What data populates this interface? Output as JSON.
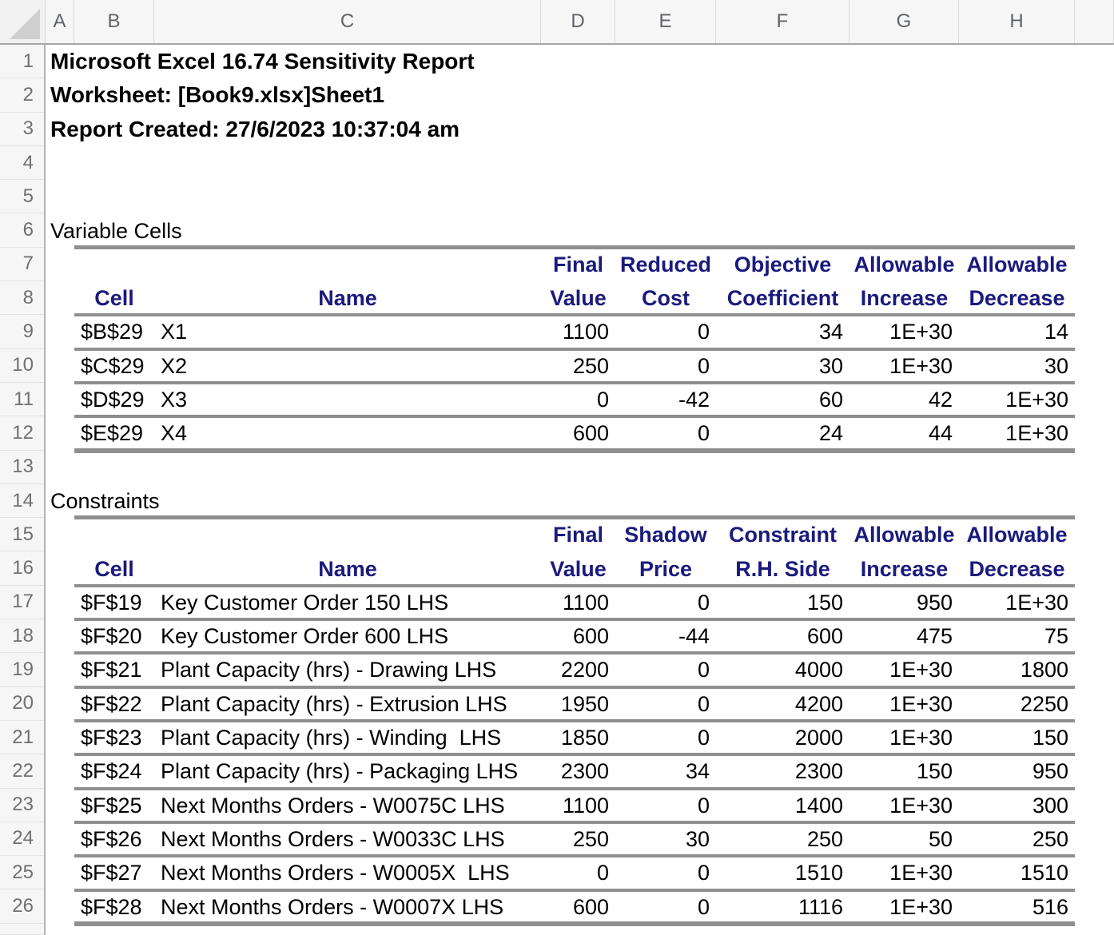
{
  "sheet": {
    "column_letters": [
      "A",
      "B",
      "C",
      "D",
      "E",
      "F",
      "G",
      "H"
    ],
    "row_numbers": [
      "1",
      "2",
      "3",
      "4",
      "5",
      "6",
      "7",
      "8",
      "9",
      "10",
      "11",
      "12",
      "13",
      "14",
      "15",
      "16",
      "17",
      "18",
      "19",
      "20",
      "21",
      "22",
      "23",
      "24",
      "25",
      "26"
    ],
    "titles": [
      "Microsoft Excel 16.74 Sensitivity Report",
      "Worksheet: [Book9.xlsx]Sheet1",
      "Report Created: 27/6/2023 10:37:04 am"
    ]
  },
  "colors": {
    "header_text": "#1a1a7e",
    "body_text": "#000000",
    "table_line": "#8f8f8f",
    "header_strip_bg": "#f6f6f6"
  },
  "variable_cells": {
    "section_label": "Variable Cells",
    "header_line1": [
      "Final",
      "Reduced",
      "Objective",
      "Allowable",
      "Allowable"
    ],
    "header_line2": [
      "Cell",
      "Name",
      "Value",
      "Cost",
      "Coefficient",
      "Increase",
      "Decrease"
    ],
    "rows": [
      {
        "cell": "$B$29",
        "name": "X1",
        "final_value": "1100",
        "reduced_cost": "0",
        "objective_coefficient": "34",
        "allowable_increase": "1E+30",
        "allowable_decrease": "14"
      },
      {
        "cell": "$C$29",
        "name": "X2",
        "final_value": "250",
        "reduced_cost": "0",
        "objective_coefficient": "30",
        "allowable_increase": "1E+30",
        "allowable_decrease": "30"
      },
      {
        "cell": "$D$29",
        "name": "X3",
        "final_value": "0",
        "reduced_cost": "-42",
        "objective_coefficient": "60",
        "allowable_increase": "42",
        "allowable_decrease": "1E+30"
      },
      {
        "cell": "$E$29",
        "name": "X4",
        "final_value": "600",
        "reduced_cost": "0",
        "objective_coefficient": "24",
        "allowable_increase": "44",
        "allowable_decrease": "1E+30"
      }
    ]
  },
  "constraints": {
    "section_label": "Constraints",
    "header_line1": [
      "Final",
      "Shadow",
      "Constraint",
      "Allowable",
      "Allowable"
    ],
    "header_line2": [
      "Cell",
      "Name",
      "Value",
      "Price",
      "R.H. Side",
      "Increase",
      "Decrease"
    ],
    "rows": [
      {
        "cell": "$F$19",
        "name": "Key Customer Order 150 LHS",
        "final_value": "1100",
        "shadow_price": "0",
        "constraint_rh_side": "150",
        "allowable_increase": "950",
        "allowable_decrease": "1E+30"
      },
      {
        "cell": "$F$20",
        "name": "Key Customer Order 600 LHS",
        "final_value": "600",
        "shadow_price": "-44",
        "constraint_rh_side": "600",
        "allowable_increase": "475",
        "allowable_decrease": "75"
      },
      {
        "cell": "$F$21",
        "name": "Plant Capacity (hrs) - Drawing LHS",
        "final_value": "2200",
        "shadow_price": "0",
        "constraint_rh_side": "4000",
        "allowable_increase": "1E+30",
        "allowable_decrease": "1800"
      },
      {
        "cell": "$F$22",
        "name": "Plant Capacity (hrs) - Extrusion LHS",
        "final_value": "1950",
        "shadow_price": "0",
        "constraint_rh_side": "4200",
        "allowable_increase": "1E+30",
        "allowable_decrease": "2250"
      },
      {
        "cell": "$F$23",
        "name": "Plant Capacity (hrs) - Winding  LHS",
        "final_value": "1850",
        "shadow_price": "0",
        "constraint_rh_side": "2000",
        "allowable_increase": "1E+30",
        "allowable_decrease": "150"
      },
      {
        "cell": "$F$24",
        "name": "Plant Capacity (hrs) - Packaging LHS",
        "final_value": "2300",
        "shadow_price": "34",
        "constraint_rh_side": "2300",
        "allowable_increase": "150",
        "allowable_decrease": "950"
      },
      {
        "cell": "$F$25",
        "name": "Next Months Orders - W0075C LHS",
        "final_value": "1100",
        "shadow_price": "0",
        "constraint_rh_side": "1400",
        "allowable_increase": "1E+30",
        "allowable_decrease": "300"
      },
      {
        "cell": "$F$26",
        "name": "Next Months Orders - W0033C LHS",
        "final_value": "250",
        "shadow_price": "30",
        "constraint_rh_side": "250",
        "allowable_increase": "50",
        "allowable_decrease": "250"
      },
      {
        "cell": "$F$27",
        "name": "Next Months Orders - W0005X  LHS",
        "final_value": "0",
        "shadow_price": "0",
        "constraint_rh_side": "1510",
        "allowable_increase": "1E+30",
        "allowable_decrease": "1510"
      },
      {
        "cell": "$F$28",
        "name": "Next Months Orders - W0007X LHS",
        "final_value": "600",
        "shadow_price": "0",
        "constraint_rh_side": "1116",
        "allowable_increase": "1E+30",
        "allowable_decrease": "516"
      }
    ]
  }
}
